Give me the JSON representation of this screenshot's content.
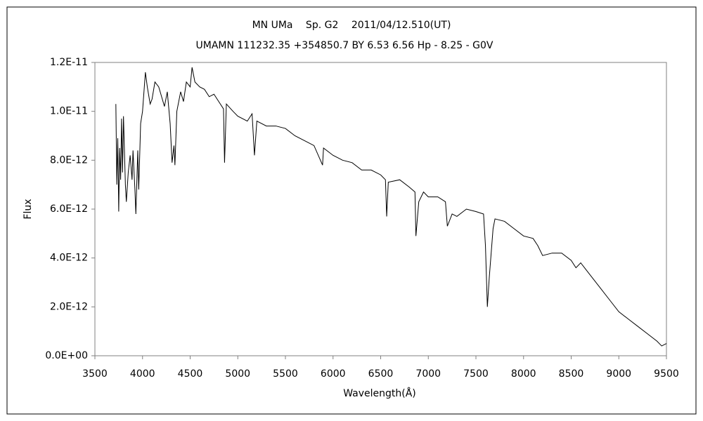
{
  "chart_data": {
    "type": "line",
    "title": "MN UMa　 Sp. G2　 2011/04/12.510(UT)",
    "subtitle": "UMAMN 111232.35 +354850.7 BY 6.53 6.56 Hp - 8.25 - G0V",
    "xlabel": "Wavelength(Å)",
    "ylabel": "Flux",
    "color": "#000000",
    "grid": false,
    "xlim": [
      3500,
      9500
    ],
    "xticks": [
      3500,
      4000,
      4500,
      5000,
      5500,
      6000,
      6500,
      7000,
      7500,
      8000,
      8500,
      9000,
      9500
    ],
    "ylim": [
      0,
      1.2e-11
    ],
    "yticks": [
      {
        "value": 0,
        "label": "0.0E+00"
      },
      {
        "value": 2e-12,
        "label": "2.0E-12"
      },
      {
        "value": 4e-12,
        "label": "4.0E-12"
      },
      {
        "value": 6e-12,
        "label": "6.0E-12"
      },
      {
        "value": 8e-12,
        "label": "8.0E-12"
      },
      {
        "value": 1e-11,
        "label": "1.0E-11"
      },
      {
        "value": 1.2e-11,
        "label": "1.2E-11"
      }
    ],
    "x": [
      3720,
      3730,
      3740,
      3750,
      3760,
      3770,
      3780,
      3790,
      3800,
      3820,
      3830,
      3850,
      3870,
      3890,
      3900,
      3920,
      3930,
      3950,
      3960,
      3980,
      4000,
      4030,
      4050,
      4080,
      4100,
      4130,
      4170,
      4200,
      4230,
      4260,
      4290,
      4310,
      4330,
      4340,
      4360,
      4400,
      4430,
      4460,
      4500,
      4520,
      4550,
      4600,
      4650,
      4700,
      4750,
      4800,
      4850,
      4861,
      4880,
      4950,
      5000,
      5100,
      5150,
      5175,
      5200,
      5300,
      5400,
      5500,
      5600,
      5700,
      5800,
      5890,
      5900,
      6000,
      6100,
      6200,
      6300,
      6400,
      6500,
      6550,
      6563,
      6580,
      6700,
      6800,
      6860,
      6870,
      6900,
      6950,
      7000,
      7100,
      7180,
      7200,
      7250,
      7300,
      7400,
      7500,
      7580,
      7600,
      7620,
      7640,
      7680,
      7700,
      7800,
      7900,
      8000,
      8100,
      8150,
      8200,
      8300,
      8400,
      8500,
      8550,
      8600,
      8700,
      8800,
      8900,
      9000,
      9100,
      9200,
      9300,
      9400,
      9450,
      9500
    ],
    "values": [
      1.03e-11,
      7e-12,
      8.9e-12,
      5.9e-12,
      8.5e-12,
      7.2e-12,
      9.7e-12,
      7.5e-12,
      9.8e-12,
      7e-12,
      6.3e-12,
      7.5e-12,
      8.2e-12,
      7.2e-12,
      8.4e-12,
      6.8e-12,
      5.8e-12,
      8.4e-12,
      6.8e-12,
      9.5e-12,
      1e-11,
      1.16e-11,
      1.1e-11,
      1.03e-11,
      1.05e-11,
      1.12e-11,
      1.1e-11,
      1.06e-11,
      1.02e-11,
      1.08e-11,
      9.5e-12,
      7.9e-12,
      8.6e-12,
      7.8e-12,
      1e-11,
      1.08e-11,
      1.04e-11,
      1.12e-11,
      1.1e-11,
      1.18e-11,
      1.12e-11,
      1.1e-11,
      1.09e-11,
      1.06e-11,
      1.07e-11,
      1.04e-11,
      1.01e-11,
      7.9e-12,
      1.03e-11,
      1e-11,
      9.8e-12,
      9.6e-12,
      9.9e-12,
      8.2e-12,
      9.6e-12,
      9.4e-12,
      9.4e-12,
      9.3e-12,
      9e-12,
      8.8e-12,
      8.6e-12,
      7.8e-12,
      8.5e-12,
      8.2e-12,
      8e-12,
      7.9e-12,
      7.6e-12,
      7.6e-12,
      7.4e-12,
      7.2e-12,
      5.7e-12,
      7.1e-12,
      7.2e-12,
      6.9e-12,
      6.7e-12,
      4.9e-12,
      6.3e-12,
      6.7e-12,
      6.5e-12,
      6.5e-12,
      6.3e-12,
      5.3e-12,
      5.8e-12,
      5.7e-12,
      6e-12,
      5.9e-12,
      5.8e-12,
      4.5e-12,
      2e-12,
      3.2e-12,
      5.2e-12,
      5.6e-12,
      5.5e-12,
      5.2e-12,
      4.9e-12,
      4.8e-12,
      4.5e-12,
      4.1e-12,
      4.2e-12,
      4.2e-12,
      3.9e-12,
      3.6e-12,
      3.8e-12,
      3.3e-12,
      2.8e-12,
      2.3e-12,
      1.8e-12,
      1.5e-12,
      1.2e-12,
      9e-13,
      6e-13,
      4e-13,
      5e-13
    ]
  }
}
